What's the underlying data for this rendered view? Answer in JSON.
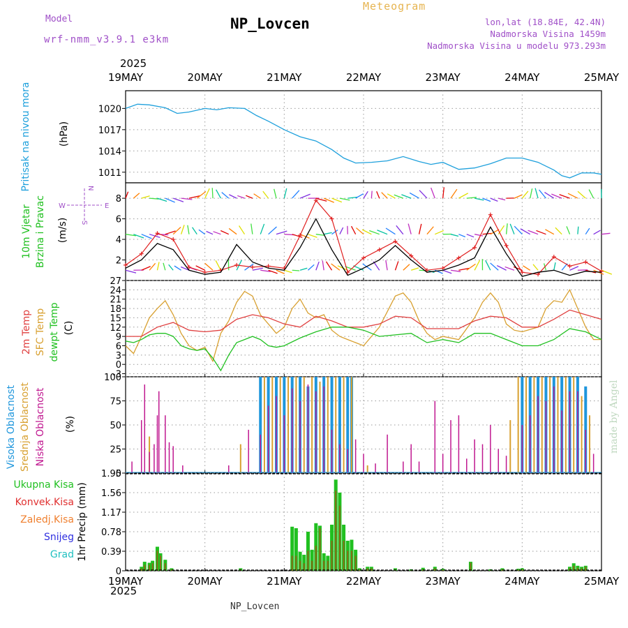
{
  "header": {
    "model_label": "Model",
    "model_name": "wrf-nmm_v3.9.1 e3km",
    "station": "NP_Lovcen",
    "meteogram": "Meteogram",
    "lonlat": "lon,lat (18.84E, 42.4N)",
    "altitude": "Nadmorska Visina 1459m",
    "model_altitude": "Nadmorska Visina u modelu 973.293m",
    "year_top": "2025",
    "year_bottom": "2025",
    "footer_station": "NP_Lovcen",
    "made_by": "made by Angel"
  },
  "colors": {
    "pressure": "#1ea0dc",
    "wind_black": "#000000",
    "wind_red": "#e02020",
    "temp2m": "#e04040",
    "sfc": "#d8a030",
    "dewpt": "#20c020",
    "cloud_high": "#1e96dc",
    "cloud_mid": "#d8a030",
    "cloud_low": "#c01890",
    "precip_total": "#20c020",
    "precip_conv": "#e03030",
    "precip_frozen": "#f08030",
    "snow": "#3030e0",
    "hail": "#20c0c0"
  },
  "chart_data": [
    {
      "type": "line",
      "panel": "pressure",
      "ylabel_1": "Pritisak na nivou mora",
      "ylabel_2": "(hPa)",
      "ylim": [
        1009.5,
        1022.5
      ],
      "yticks": [
        "1011",
        "1014",
        "1017",
        "1020"
      ],
      "ytick_values": [
        1011,
        1014,
        1017,
        1020
      ],
      "xticks": [
        "19MAY",
        "20MAY",
        "21MAY",
        "22MAY",
        "23MAY",
        "24MAY",
        "25MAY"
      ],
      "x_days": [
        0,
        1,
        2,
        3,
        4,
        5,
        6
      ],
      "series": [
        {
          "name": "Pritisak",
          "x": [
            0,
            0.15,
            0.3,
            0.5,
            0.65,
            0.8,
            1.0,
            1.15,
            1.3,
            1.5,
            1.65,
            1.8,
            2.0,
            2.2,
            2.4,
            2.6,
            2.75,
            2.9,
            3.1,
            3.3,
            3.5,
            3.7,
            3.85,
            4.0,
            4.2,
            4.4,
            4.6,
            4.8,
            5.0,
            5.2,
            5.4,
            5.5,
            5.6,
            5.75,
            5.9,
            6.0
          ],
          "values": [
            1020.0,
            1020.6,
            1020.5,
            1020.1,
            1019.3,
            1019.5,
            1020.0,
            1019.8,
            1020.1,
            1020.0,
            1019.0,
            1018.2,
            1017.0,
            1016.0,
            1015.4,
            1014.2,
            1013.0,
            1012.3,
            1012.4,
            1012.6,
            1013.2,
            1012.5,
            1012.1,
            1012.4,
            1011.4,
            1011.6,
            1012.2,
            1013.0,
            1013.0,
            1012.4,
            1011.3,
            1010.5,
            1010.2,
            1010.9,
            1010.9,
            1010.7
          ]
        }
      ]
    },
    {
      "type": "line",
      "panel": "wind",
      "ylabel_1": "10m Vjetar",
      "ylabel_2": "Brzina i Pravac",
      "ylabel_3": "(m/s)",
      "compass": [
        "N",
        "S",
        "W",
        "E"
      ],
      "ylim": [
        0,
        9.5
      ],
      "yticks": [
        "2",
        "4",
        "6",
        "8"
      ],
      "ytick_values": [
        2,
        4,
        6,
        8
      ],
      "series": [
        {
          "name": "Brzina",
          "color": "#000000",
          "x": [
            0,
            0.2,
            0.4,
            0.6,
            0.8,
            1.0,
            1.2,
            1.4,
            1.6,
            1.8,
            2.0,
            2.2,
            2.4,
            2.6,
            2.8,
            3.0,
            3.2,
            3.4,
            3.6,
            3.8,
            4.0,
            4.2,
            4.4,
            4.6,
            4.8,
            5.0,
            5.2,
            5.4,
            5.6,
            5.8,
            6.0
          ],
          "values": [
            1.2,
            2.0,
            3.6,
            3.0,
            1.0,
            0.6,
            0.8,
            3.5,
            1.8,
            1.2,
            1.0,
            3.2,
            6.0,
            3.0,
            0.5,
            1.2,
            2.0,
            3.4,
            2.0,
            0.8,
            1.0,
            1.5,
            2.2,
            5.2,
            2.6,
            0.4,
            0.8,
            1.0,
            0.5,
            0.9,
            0.8
          ]
        },
        {
          "name": "Udari",
          "color": "#e02020",
          "x": [
            0,
            0.2,
            0.4,
            0.6,
            0.8,
            1.0,
            1.2,
            1.4,
            1.6,
            1.8,
            2.0,
            2.2,
            2.4,
            2.6,
            2.8,
            3.0,
            3.2,
            3.4,
            3.6,
            3.8,
            4.0,
            4.2,
            4.4,
            4.6,
            4.8,
            5.0,
            5.2,
            5.4,
            5.6,
            5.8,
            6.0
          ],
          "values": [
            1.5,
            2.6,
            4.6,
            4.0,
            1.3,
            0.8,
            1.0,
            1.5,
            1.3,
            1.4,
            1.2,
            4.4,
            7.8,
            6.0,
            0.8,
            2.2,
            3.0,
            3.8,
            2.4,
            1.0,
            1.2,
            2.2,
            3.2,
            6.4,
            3.4,
            0.8,
            0.6,
            2.3,
            1.4,
            1.8,
            0.9
          ]
        }
      ]
    },
    {
      "type": "line",
      "panel": "temperature",
      "ylabel_1": "2m Temp",
      "ylabel_2": "SFC Temp",
      "ylabel_3": "dewpt Temp",
      "ylabel_4": "(C)",
      "ylim": [
        -4,
        27
      ],
      "yticks": [
        "-3",
        "0",
        "3",
        "6",
        "9",
        "12",
        "15",
        "18",
        "21",
        "24",
        "27"
      ],
      "ytick_values": [
        -3,
        0,
        3,
        6,
        9,
        12,
        15,
        18,
        21,
        24,
        27
      ],
      "series": [
        {
          "name": "2m Temp",
          "x": [
            0,
            0.2,
            0.4,
            0.6,
            0.8,
            1.0,
            1.2,
            1.4,
            1.6,
            1.8,
            2.0,
            2.2,
            2.4,
            2.6,
            2.8,
            3.0,
            3.2,
            3.4,
            3.6,
            3.8,
            4.0,
            4.2,
            4.4,
            4.6,
            4.8,
            5.0,
            5.2,
            5.4,
            5.6,
            5.8,
            6.0
          ],
          "values": [
            9,
            9,
            12,
            13.5,
            11,
            10.5,
            11,
            14.5,
            16,
            15,
            13,
            12,
            15.5,
            14,
            12,
            12,
            13,
            15.5,
            15,
            11.5,
            11.5,
            11.5,
            14,
            15.5,
            15,
            12,
            12,
            14.5,
            17.5,
            16,
            14.5
          ]
        },
        {
          "name": "SFC Temp",
          "x": [
            0,
            0.1,
            0.2,
            0.3,
            0.4,
            0.5,
            0.6,
            0.7,
            0.8,
            0.9,
            1.0,
            1.1,
            1.2,
            1.3,
            1.4,
            1.5,
            1.6,
            1.7,
            1.8,
            1.9,
            2.0,
            2.1,
            2.2,
            2.3,
            2.4,
            2.5,
            2.6,
            2.7,
            2.8,
            2.9,
            3.0,
            3.2,
            3.4,
            3.5,
            3.6,
            3.7,
            3.8,
            3.9,
            4.0,
            4.2,
            4.4,
            4.5,
            4.6,
            4.7,
            4.8,
            4.9,
            5.0,
            5.2,
            5.3,
            5.4,
            5.5,
            5.6,
            5.7,
            5.8,
            5.9,
            6.0
          ],
          "values": [
            6,
            3.5,
            9,
            15,
            18,
            20.5,
            16,
            10,
            6,
            4.5,
            5.5,
            1,
            10,
            14,
            20,
            23.5,
            22,
            16,
            13,
            10,
            12,
            18,
            21,
            16.5,
            15,
            16,
            11,
            9,
            8,
            7,
            6,
            12,
            22,
            23,
            20,
            14,
            10,
            8,
            9,
            8,
            15,
            20,
            23,
            20,
            13,
            11,
            10.5,
            12,
            18,
            20.5,
            20,
            24,
            18,
            12,
            8,
            8
          ]
        },
        {
          "name": "dewpt Temp",
          "x": [
            0,
            0.1,
            0.2,
            0.3,
            0.4,
            0.5,
            0.6,
            0.7,
            0.8,
            0.9,
            1.0,
            1.1,
            1.2,
            1.3,
            1.4,
            1.5,
            1.6,
            1.7,
            1.8,
            1.9,
            2.0,
            2.2,
            2.4,
            2.6,
            2.8,
            3.0,
            3.2,
            3.4,
            3.6,
            3.8,
            4.0,
            4.2,
            4.4,
            4.6,
            4.8,
            5.0,
            5.2,
            5.4,
            5.6,
            5.8,
            6.0
          ],
          "values": [
            7.5,
            7,
            8,
            9.5,
            10,
            10,
            9,
            6,
            5,
            4.5,
            5,
            2,
            -2,
            3,
            7,
            8,
            9,
            8,
            6,
            5.5,
            6,
            8.5,
            10.5,
            12,
            12,
            11,
            9,
            9.5,
            10,
            7,
            8,
            7,
            10,
            10,
            8,
            6,
            6,
            8,
            11.5,
            10.5,
            8
          ]
        }
      ]
    },
    {
      "type": "bar",
      "panel": "clouds",
      "ylabel_1": "Visoka Oblacnost",
      "ylabel_2": "Srednja Oblacnost",
      "ylabel_3": "Niska Oblacnost",
      "ylabel_4": "(%)",
      "ylim": [
        0,
        100
      ],
      "yticks": [
        "0",
        "25",
        "50",
        "75",
        "100"
      ],
      "ytick_values": [
        0,
        25,
        50,
        75,
        100
      ],
      "low_x": [
        0.08,
        0.2,
        0.24,
        0.3,
        0.36,
        0.4,
        0.42,
        0.5,
        0.55,
        0.6,
        0.72,
        1.3,
        1.55,
        1.7,
        1.8,
        1.9,
        2.0,
        2.1,
        2.2,
        2.3,
        2.4,
        2.5,
        2.6,
        2.7,
        2.8,
        2.9,
        3.0,
        3.15,
        3.3,
        3.5,
        3.6,
        3.7,
        3.9,
        4.0,
        4.1,
        4.2,
        4.3,
        4.4,
        4.5,
        4.6,
        4.7,
        4.8,
        5.0,
        5.1,
        5.2,
        5.3,
        5.4,
        5.5,
        5.6,
        5.7,
        5.8,
        5.9
      ],
      "low_values": [
        12,
        55,
        92,
        22,
        30,
        60,
        85,
        60,
        32,
        28,
        8,
        8,
        45,
        40,
        70,
        80,
        60,
        88,
        75,
        92,
        85,
        90,
        45,
        30,
        25,
        35,
        20,
        10,
        40,
        12,
        30,
        12,
        75,
        20,
        55,
        60,
        15,
        35,
        30,
        50,
        25,
        18,
        50,
        60,
        80,
        75,
        90,
        65,
        85,
        85,
        45,
        20
      ],
      "mid_x": [
        0.3,
        1.45,
        1.75,
        1.85,
        1.95,
        2.05,
        2.15,
        2.25,
        2.35,
        2.45,
        2.55,
        2.65,
        2.75,
        2.85,
        3.05,
        4.85,
        4.95,
        5.05,
        5.15,
        5.25,
        5.35,
        5.45,
        5.55,
        5.65,
        5.75,
        5.85
      ],
      "mid_values": [
        38,
        30,
        100,
        100,
        100,
        100,
        100,
        100,
        100,
        95,
        100,
        100,
        100,
        100,
        8,
        55,
        100,
        100,
        100,
        100,
        100,
        100,
        100,
        100,
        80,
        60
      ],
      "high_x": [
        1.7,
        1.8,
        1.9,
        2.0,
        2.1,
        2.2,
        2.3,
        2.4,
        2.5,
        2.6,
        2.7,
        2.8,
        2.85,
        5.0,
        5.1,
        5.2,
        5.3,
        5.4,
        5.5,
        5.6,
        5.7,
        5.8
      ],
      "high_values": [
        100,
        100,
        100,
        100,
        100,
        100,
        90,
        100,
        100,
        100,
        100,
        100,
        100,
        100,
        100,
        100,
        100,
        100,
        100,
        100,
        100,
        90
      ]
    },
    {
      "type": "bar",
      "panel": "precip",
      "ylabel_1": "Ukupna Kisa",
      "ylabel_2": "Konvek.Kisa",
      "ylabel_3": "Zaledj.Kisa",
      "ylabel_4": "Snijeg",
      "ylabel_5": "Grad",
      "ylabel_6": "1hr Precip (mm)",
      "ylim": [
        0,
        1.95
      ],
      "yticks": [
        "0",
        "0.39",
        "0.78",
        "1.17",
        "1.56",
        "1.95"
      ],
      "ytick_values": [
        0,
        0.39,
        0.78,
        1.17,
        1.56,
        1.95
      ],
      "x": [
        0.2,
        0.24,
        0.3,
        0.34,
        0.4,
        0.44,
        0.5,
        0.58,
        1.45,
        2.1,
        2.15,
        2.2,
        2.25,
        2.3,
        2.35,
        2.4,
        2.45,
        2.5,
        2.55,
        2.6,
        2.65,
        2.7,
        2.75,
        2.8,
        2.85,
        2.9,
        2.95,
        3.05,
        3.1,
        3.4,
        3.6,
        3.75,
        3.9,
        4.0,
        4.35,
        4.6,
        4.75,
        4.95,
        5.0,
        5.6,
        5.65,
        5.7,
        5.75,
        5.8
      ],
      "totals": [
        0.08,
        0.18,
        0.16,
        0.2,
        0.48,
        0.35,
        0.22,
        0.05,
        0.05,
        0.88,
        0.85,
        0.38,
        0.32,
        0.78,
        0.42,
        0.95,
        0.9,
        0.35,
        0.3,
        0.92,
        1.82,
        1.56,
        0.92,
        0.6,
        0.62,
        0.42,
        0.05,
        0.08,
        0.08,
        0.05,
        0.03,
        0.06,
        0.08,
        0.04,
        0.18,
        0.03,
        0.05,
        0.04,
        0.05,
        0.08,
        0.15,
        0.1,
        0.08,
        0.1
      ],
      "conv": [
        0.05,
        0.12,
        0.12,
        0.15,
        0.4,
        0.3,
        0.15,
        0.03,
        0.03,
        0.3,
        0.3,
        0.2,
        0.15,
        0.4,
        0.2,
        0.5,
        0.85,
        0.2,
        0.2,
        0.6,
        1.6,
        1.3,
        0.6,
        0.4,
        0.4,
        0.3,
        0.02,
        0.05,
        0.05,
        0.03,
        0.02,
        0.03,
        0.05,
        0.02,
        0.16,
        0.02,
        0.03,
        0.02,
        0.03,
        0.05,
        0.1,
        0.06,
        0.05,
        0.08
      ]
    }
  ]
}
